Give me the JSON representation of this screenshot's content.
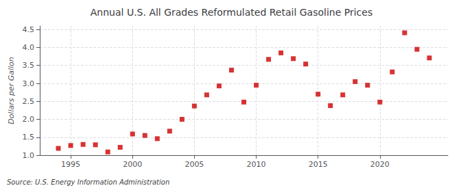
{
  "chart_data": {
    "type": "scatter",
    "title": "Annual U.S. All Grades Reformulated Retail Gasoline Prices",
    "ylabel": "Dollars per Gallon",
    "annotation": "Source: U.S. Energy Information Administration",
    "x": [
      1994,
      1995,
      1996,
      1997,
      1998,
      1999,
      2000,
      2001,
      2002,
      2003,
      2004,
      2005,
      2006,
      2007,
      2008,
      2009,
      2010,
      2011,
      2012,
      2013,
      2014,
      2015,
      2016,
      2017,
      2018,
      2019,
      2020,
      2021,
      2022,
      2023,
      2024
    ],
    "values": [
      1.19,
      1.27,
      1.3,
      1.29,
      1.09,
      1.22,
      1.59,
      1.55,
      1.46,
      1.67,
      2.0,
      2.37,
      2.68,
      2.93,
      3.37,
      2.48,
      2.95,
      3.67,
      3.85,
      3.69,
      3.54,
      2.7,
      2.38,
      2.68,
      3.05,
      2.95,
      2.48,
      3.32,
      4.41,
      3.95,
      3.71
    ],
    "color": "#cc0000",
    "marker": "square",
    "xlim": [
      1992.5,
      2025.5
    ],
    "xticks": [
      1995,
      2000,
      2005,
      2010,
      2015,
      2020
    ],
    "ylim": [
      1.0,
      4.6
    ],
    "yticks": [
      {
        "value": 1.0,
        "label": "1.0"
      },
      1.5,
      {
        "value": 2.0,
        "label": "2.0"
      },
      2.5,
      {
        "value": 3.0,
        "label": "3.0"
      },
      3.5,
      {
        "value": 4.0,
        "label": "4.0"
      },
      4.5
    ],
    "grid": true
  }
}
